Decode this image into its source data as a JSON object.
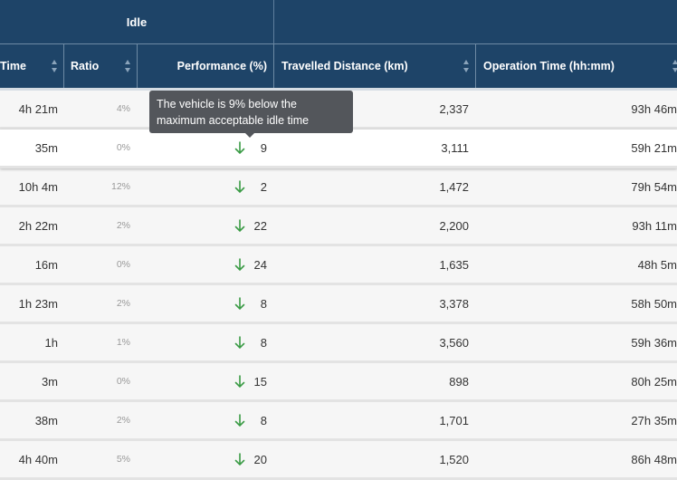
{
  "header": {
    "group_idle": "Idle",
    "columns": {
      "time": "Time",
      "ratio": "Ratio",
      "performance": "Performance (%)",
      "distance": "Travelled Distance (km)",
      "operation": "Operation Time (hh:mm)"
    }
  },
  "tooltip": {
    "text": "The vehicle is 9% below the maximum acceptable idle time"
  },
  "colors": {
    "header_bg": "#1e4468",
    "arrow_green": "#3a9b45",
    "tooltip_bg": "#53565b"
  },
  "rows": [
    {
      "time": "4h 21m",
      "ratio": "4%",
      "performance": "",
      "distance": "2,337",
      "operation": "93h 46m"
    },
    {
      "time": "35m",
      "ratio": "0%",
      "performance": "9",
      "distance": "3,111",
      "operation": "59h 21m"
    },
    {
      "time": "10h 4m",
      "ratio": "12%",
      "performance": "2",
      "distance": "1,472",
      "operation": "79h 54m"
    },
    {
      "time": "2h 22m",
      "ratio": "2%",
      "performance": "22",
      "distance": "2,200",
      "operation": "93h 11m"
    },
    {
      "time": "16m",
      "ratio": "0%",
      "performance": "24",
      "distance": "1,635",
      "operation": "48h 5m"
    },
    {
      "time": "1h 23m",
      "ratio": "2%",
      "performance": "8",
      "distance": "3,378",
      "operation": "58h 50m"
    },
    {
      "time": "1h",
      "ratio": "1%",
      "performance": "8",
      "distance": "3,560",
      "operation": "59h 36m"
    },
    {
      "time": "3m",
      "ratio": "0%",
      "performance": "15",
      "distance": "898",
      "operation": "80h 25m"
    },
    {
      "time": "38m",
      "ratio": "2%",
      "performance": "8",
      "distance": "1,701",
      "operation": "27h 35m"
    },
    {
      "time": "4h 40m",
      "ratio": "5%",
      "performance": "20",
      "distance": "1,520",
      "operation": "86h 48m"
    }
  ]
}
